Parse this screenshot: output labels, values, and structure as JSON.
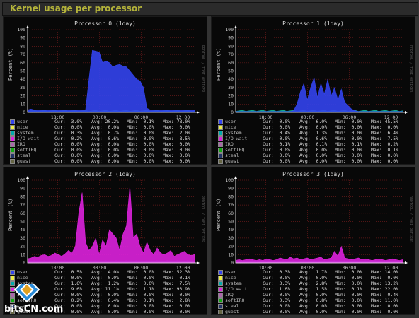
{
  "page_title": "Kernel usage per processor",
  "watermark": "bitsCN.com",
  "side_label": "RRDTOOL / TOBI OETIKER",
  "colors": {
    "user": "#3344ee",
    "nice": "#eeee44",
    "system": "#00aaaa",
    "iowait": "#dd22dd",
    "irq": "#aa66aa",
    "softirq": "#11aa11",
    "steal": "#223366",
    "guest": "#666644"
  },
  "panels": [
    {
      "title": "Processor 0  (1day)",
      "ylabel": "Percent (%)",
      "legend": [
        {
          "name": "user",
          "cur": "Cur:  3.0%",
          "avg": "Avg: 20.2%",
          "min": "Min:  0.1%",
          "max": "Max: 78.0%"
        },
        {
          "name": "nice",
          "cur": "Cur:  0.0%",
          "avg": "Avg:  0.0%",
          "min": "Min:  0.0%",
          "max": "Max:  0.0%"
        },
        {
          "name": "system",
          "cur": "Cur:  0.3%",
          "avg": "Avg:  0.7%",
          "min": "Min:  0.0%",
          "max": "Max:  2.0%"
        },
        {
          "name": "I/O wait",
          "cur": "Cur:  0.2%",
          "avg": "Avg:  0.6%",
          "min": "Min:  0.0%",
          "max": "Max:  8.5%"
        },
        {
          "name": "IRQ",
          "cur": "Cur:  0.0%",
          "avg": "Avg:  0.0%",
          "min": "Min:  0.0%",
          "max": "Max:  0.0%"
        },
        {
          "name": "softIRQ",
          "cur": "Cur:  0.0%",
          "avg": "Avg:  0.0%",
          "min": "Min:  0.0%",
          "max": "Max:  0.0%"
        },
        {
          "name": "steal",
          "cur": "Cur:  0.0%",
          "avg": "Avg:  0.0%",
          "min": "Min:  0.0%",
          "max": "Max:  0.0%"
        },
        {
          "name": "guest",
          "cur": "Cur:  0.0%",
          "avg": "Avg:  0.0%",
          "min": "Min:  0.0%",
          "max": "Max:  0.0%"
        }
      ]
    },
    {
      "title": "Processor 1  (1day)",
      "ylabel": "Percent (%)",
      "legend": [
        {
          "name": "user",
          "cur": "Cur:  0.0%",
          "avg": "Avg:  6.0%",
          "min": "Min:  0.0%",
          "max": "Max: 45.5%"
        },
        {
          "name": "nice",
          "cur": "Cur:  0.0%",
          "avg": "Avg:  0.0%",
          "min": "Min:  0.0%",
          "max": "Max:  0.0%"
        },
        {
          "name": "system",
          "cur": "Cur:  0.4%",
          "avg": "Avg:  1.3%",
          "min": "Min:  0.0%",
          "max": "Max:  6.4%"
        },
        {
          "name": "I/O wait",
          "cur": "Cur:  0.0%",
          "avg": "Avg:  0.6%",
          "min": "Min:  0.0%",
          "max": "Max:  7.5%"
        },
        {
          "name": "IRQ",
          "cur": "Cur:  0.1%",
          "avg": "Avg:  0.1%",
          "min": "Min:  0.1%",
          "max": "Max:  0.2%"
        },
        {
          "name": "softIRQ",
          "cur": "Cur:  0.0%",
          "avg": "Avg:  0.0%",
          "min": "Min:  0.0%",
          "max": "Max:  0.1%"
        },
        {
          "name": "steal",
          "cur": "Cur:  0.0%",
          "avg": "Avg:  0.0%",
          "min": "Min:  0.0%",
          "max": "Max:  0.0%"
        },
        {
          "name": "guest",
          "cur": "Cur:  0.0%",
          "avg": "Avg:  0.0%",
          "min": "Min:  0.0%",
          "max": "Max:  0.0%"
        }
      ]
    },
    {
      "title": "Processor 2  (1day)",
      "ylabel": "Percent (%)",
      "legend": [
        {
          "name": "user",
          "cur": "Cur:  0.5%",
          "avg": "Avg:  4.0%",
          "min": "Min:  0.0%",
          "max": "Max: 52.3%"
        },
        {
          "name": "nice",
          "cur": "Cur:  0.0%",
          "avg": "Avg:  0.0%",
          "min": "Min:  0.0%",
          "max": "Max:  0.1%"
        },
        {
          "name": "system",
          "cur": "Cur:  1.6%",
          "avg": "Avg:  1.2%",
          "min": "Min:  0.0%",
          "max": "Max:  7.5%"
        },
        {
          "name": "I/O wait",
          "cur": "Cur:  9.6%",
          "avg": "Avg: 11.1%",
          "min": "Min:  1.1%",
          "max": "Max: 93.9%"
        },
        {
          "name": "IRQ",
          "cur": "Cur:  0.0%",
          "avg": "Avg:  0.0%",
          "min": "Min:  0.0%",
          "max": "Max:  0.0%"
        },
        {
          "name": "softIRQ",
          "cur": "Cur:  0.2%",
          "avg": "Avg:  0.4%",
          "min": "Min:  0.1%",
          "max": "Max:  2.8%"
        },
        {
          "name": "steal",
          "cur": "Cur:  0.0%",
          "avg": "Avg:  0.0%",
          "min": "Min:  0.0%",
          "max": "Max:  0.0%"
        },
        {
          "name": "guest",
          "cur": "Cur:  0.0%",
          "avg": "Avg:  0.0%",
          "min": "Min:  0.0%",
          "max": "Max:  0.0%"
        }
      ]
    },
    {
      "title": "Processor 3  (1day)",
      "ylabel": "Percent (%)",
      "legend": [
        {
          "name": "user",
          "cur": "Cur:  0.3%",
          "avg": "Avg:  1.7%",
          "min": "Min:  0.0%",
          "max": "Max: 14.0%"
        },
        {
          "name": "nice",
          "cur": "Cur:  0.0%",
          "avg": "Avg:  0.0%",
          "min": "Min:  0.0%",
          "max": "Max:  0.0%"
        },
        {
          "name": "system",
          "cur": "Cur:  3.3%",
          "avg": "Avg:  2.8%",
          "min": "Min:  0.0%",
          "max": "Max: 13.2%"
        },
        {
          "name": "I/O wait",
          "cur": "Cur:  1.6%",
          "avg": "Avg:  1.5%",
          "min": "Min:  0.1%",
          "max": "Max: 22.0%"
        },
        {
          "name": "IRQ",
          "cur": "Cur:  0.0%",
          "avg": "Avg:  0.0%",
          "min": "Min:  0.0%",
          "max": "Max:  0.4%"
        },
        {
          "name": "softIRQ",
          "cur": "Cur:  0.3%",
          "avg": "Avg:  0.8%",
          "min": "Min:  0.0%",
          "max": "Max: 11.0%"
        },
        {
          "name": "steal",
          "cur": "Cur:  0.0%",
          "avg": "Avg:  0.0%",
          "min": "Min:  0.0%",
          "max": "Max:  0.0%"
        },
        {
          "name": "guest",
          "cur": "Cur:  0.0%",
          "avg": "Avg:  0.0%",
          "min": "Min:  0.0%",
          "max": "Max:  0.0%"
        }
      ]
    }
  ],
  "chart_data": [
    {
      "type": "area",
      "title": "Processor 0  (1day)",
      "ylabel": "Percent (%)",
      "ylim": [
        0,
        100
      ],
      "x_ticks": [
        "18:00",
        "00:00",
        "06:00",
        "12:00"
      ],
      "yticks": [
        0,
        10,
        20,
        30,
        40,
        50,
        60,
        70,
        80,
        90,
        100
      ],
      "grid": true,
      "series": [
        {
          "name": "user",
          "color": "#3344ee",
          "values": [
            3,
            4,
            3,
            3,
            3,
            3,
            3,
            3,
            3,
            3,
            3,
            3,
            3,
            3,
            3,
            3,
            3,
            3,
            40,
            75,
            74,
            73,
            60,
            62,
            60,
            55,
            57,
            58,
            56,
            55,
            50,
            45,
            40,
            38,
            30,
            5,
            3,
            3,
            3,
            3,
            3,
            3,
            3,
            3,
            3,
            3,
            3,
            3,
            3,
            3
          ]
        }
      ]
    },
    {
      "type": "area",
      "title": "Processor 1  (1day)",
      "ylabel": "Percent (%)",
      "ylim": [
        0,
        100
      ],
      "x_ticks": [
        "18:00",
        "00:00",
        "06:00",
        "12:00"
      ],
      "yticks": [
        0,
        10,
        20,
        30,
        40,
        50,
        60,
        70,
        80,
        90,
        100
      ],
      "grid": true,
      "series": [
        {
          "name": "user",
          "color": "#3344ee",
          "values": [
            1,
            1,
            1,
            1,
            1,
            1,
            1,
            1,
            1,
            1,
            1,
            1,
            1,
            1,
            1,
            1,
            1,
            2,
            10,
            25,
            35,
            15,
            30,
            42,
            18,
            35,
            22,
            40,
            20,
            30,
            15,
            28,
            12,
            8,
            4,
            2,
            1,
            1,
            1,
            1,
            1,
            1,
            1,
            1,
            1,
            1,
            1,
            1,
            1,
            1
          ]
        }
      ]
    },
    {
      "type": "area",
      "title": "Processor 2  (1day)",
      "ylabel": "Percent (%)",
      "ylim": [
        0,
        100
      ],
      "x_ticks": [
        "18:00",
        "00:00",
        "06:00",
        "12:00"
      ],
      "yticks": [
        0,
        10,
        20,
        30,
        40,
        50,
        60,
        70,
        80,
        90,
        100
      ],
      "grid": true,
      "series": [
        {
          "name": "I/O wait",
          "color": "#dd22dd",
          "values": [
            5,
            6,
            8,
            7,
            9,
            10,
            8,
            9,
            12,
            10,
            8,
            11,
            15,
            12,
            20,
            60,
            85,
            25,
            15,
            20,
            30,
            10,
            28,
            20,
            40,
            35,
            30,
            15,
            35,
            45,
            93,
            30,
            35,
            20,
            12,
            25,
            15,
            10,
            18,
            12,
            10,
            12,
            15,
            8,
            10,
            12,
            14,
            10,
            9,
            10
          ]
        }
      ]
    },
    {
      "type": "area",
      "title": "Processor 3  (1day)",
      "ylabel": "Percent (%)",
      "ylim": [
        0,
        100
      ],
      "x_ticks": [
        "18:00",
        "00:00",
        "06:00",
        "12:00"
      ],
      "yticks": [
        0,
        10,
        20,
        30,
        40,
        50,
        60,
        70,
        80,
        90,
        100
      ],
      "grid": true,
      "series": [
        {
          "name": "I/O wait",
          "color": "#dd22dd",
          "values": [
            3,
            4,
            3,
            4,
            5,
            4,
            3,
            4,
            3,
            5,
            4,
            3,
            4,
            6,
            5,
            4,
            7,
            5,
            6,
            4,
            5,
            6,
            4,
            5,
            6,
            7,
            4,
            5,
            6,
            14,
            8,
            20,
            6,
            5,
            4,
            5,
            6,
            4,
            5,
            4,
            3,
            4,
            5,
            4,
            3,
            4,
            5,
            4,
            3,
            4
          ]
        }
      ]
    }
  ]
}
